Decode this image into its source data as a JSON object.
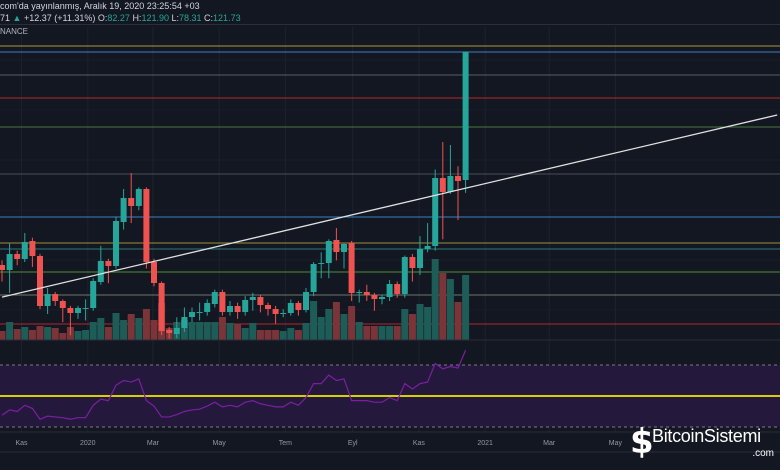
{
  "header": {
    "published": "com'da yayınlanmış, Aralık 19, 2020 23:25:54 +03",
    "price_prefix": "71",
    "change_arrow": "▲",
    "change": "+12.37 (+11.31%)",
    "o_label": "O:",
    "o": "82.27",
    "h_label": "H:",
    "h": "121.90",
    "l_label": "L:",
    "l": "78.31",
    "c_label": "C:",
    "c": "121.73",
    "exchange": "NANCE"
  },
  "logo": {
    "name": "BitcoinSistemi",
    "suffix": ".com"
  },
  "colors": {
    "background": "#131722",
    "up": "#26a69a",
    "down": "#ef5350",
    "volume_up": "#1e5c58",
    "volume_down": "#7b3538",
    "rsi_line": "#7b1fa2",
    "rsi_band": "#25183d",
    "rsi_mid": "#d6d000"
  },
  "chart_data": {
    "type": "candlestick",
    "interval": "weekly",
    "candle_fields": [
      "date",
      "open",
      "high",
      "low",
      "close"
    ],
    "candles": [
      [
        "2019-10-14",
        56.09,
        57.5,
        51.0,
        54.55
      ],
      [
        "2019-10-21",
        54.55,
        62.87,
        47.5,
        59.48
      ],
      [
        "2019-10-28",
        59.48,
        60.5,
        56.0,
        57.94
      ],
      [
        "2019-11-04",
        57.94,
        65.95,
        57.0,
        63.17
      ],
      [
        "2019-11-11",
        63.48,
        64.5,
        55.5,
        58.86
      ],
      [
        "2019-11-18",
        58.86,
        59.5,
        42.5,
        43.46
      ],
      [
        "2019-11-25",
        43.46,
        49.0,
        41.0,
        47.16
      ],
      [
        "2019-12-02",
        47.16,
        47.8,
        43.5,
        45.0
      ],
      [
        "2019-12-09",
        45.0,
        45.5,
        38.5,
        42.85
      ],
      [
        "2019-12-16",
        42.85,
        43.5,
        34.5,
        41.31
      ],
      [
        "2019-12-23",
        41.31,
        43.5,
        39.5,
        42.85
      ],
      [
        "2019-12-30",
        42.55,
        45.5,
        39.0,
        42.85
      ],
      [
        "2020-01-06",
        42.85,
        52.0,
        42.0,
        51.16
      ],
      [
        "2020-01-13",
        50.85,
        62.0,
        50.0,
        57.32
      ],
      [
        "2020-01-20",
        57.32,
        58.0,
        50.5,
        55.78
      ],
      [
        "2020-01-27",
        55.78,
        71.0,
        55.0,
        69.64
      ],
      [
        "2020-02-03",
        69.33,
        79.5,
        67.0,
        76.73
      ],
      [
        "2020-02-10",
        76.73,
        84.43,
        69.0,
        74.26
      ],
      [
        "2020-02-17",
        74.26,
        80.0,
        73.0,
        79.5
      ],
      [
        "2020-02-24",
        79.5,
        80.0,
        55.0,
        57.01
      ],
      [
        "2020-03-02",
        57.01,
        58.0,
        49.5,
        50.55
      ],
      [
        "2020-03-09",
        50.55,
        51.0,
        34.5,
        35.76
      ],
      [
        "2020-03-16",
        36.07,
        37.0,
        33.5,
        35.15
      ],
      [
        "2020-03-23",
        34.84,
        40.0,
        33.5,
        36.69
      ],
      [
        "2020-03-30",
        36.69,
        43.0,
        35.5,
        40.07
      ],
      [
        "2020-04-06",
        40.07,
        43.0,
        38.5,
        41.61
      ],
      [
        "2020-04-13",
        41.4,
        44.5,
        39.0,
        41.61
      ],
      [
        "2020-04-20",
        41.61,
        45.5,
        40.5,
        44.39
      ],
      [
        "2020-04-27",
        44.08,
        48.5,
        43.0,
        47.77
      ],
      [
        "2020-05-04",
        47.77,
        48.5,
        40.5,
        41.61
      ],
      [
        "2020-05-11",
        41.61,
        45.0,
        40.5,
        43.46
      ],
      [
        "2020-05-18",
        43.46,
        44.5,
        39.5,
        41.61
      ],
      [
        "2020-05-25",
        41.61,
        46.5,
        40.5,
        45.31
      ],
      [
        "2020-06-01",
        45.31,
        47.5,
        42.0,
        46.23
      ],
      [
        "2020-06-08",
        46.23,
        47.0,
        41.5,
        43.77
      ],
      [
        "2020-06-15",
        43.77,
        44.5,
        40.5,
        42.54
      ],
      [
        "2020-06-22",
        42.54,
        43.5,
        38.0,
        41.0
      ],
      [
        "2020-06-29",
        41.2,
        42.5,
        40.0,
        41.31
      ],
      [
        "2020-07-06",
        41.31,
        45.5,
        40.5,
        44.39
      ],
      [
        "2020-07-13",
        44.39,
        45.0,
        40.5,
        42.23
      ],
      [
        "2020-07-20",
        42.23,
        49.0,
        41.5,
        47.77
      ],
      [
        "2020-07-27",
        47.77,
        57.0,
        46.5,
        56.4
      ],
      [
        "2020-08-03",
        56.5,
        60.0,
        52.0,
        56.71
      ],
      [
        "2020-08-10",
        56.71,
        64.0,
        52.0,
        63.48
      ],
      [
        "2020-08-17",
        63.8,
        67.5,
        57.5,
        60.09
      ],
      [
        "2020-08-24",
        60.09,
        63.0,
        55.0,
        62.56
      ],
      [
        "2020-08-31",
        62.87,
        63.5,
        45.0,
        47.47
      ],
      [
        "2020-09-07",
        47.6,
        48.5,
        44.5,
        47.77
      ],
      [
        "2020-09-14",
        47.77,
        50.0,
        45.0,
        46.85
      ],
      [
        "2020-09-21",
        46.85,
        47.5,
        42.0,
        45.62
      ],
      [
        "2020-09-28",
        45.62,
        47.0,
        44.0,
        46.23
      ],
      [
        "2020-10-05",
        46.23,
        51.5,
        45.0,
        50.24
      ],
      [
        "2020-10-12",
        50.24,
        51.0,
        46.0,
        47.16
      ],
      [
        "2020-10-19",
        47.16,
        59.0,
        46.0,
        58.55
      ],
      [
        "2020-10-26",
        58.55,
        59.5,
        51.0,
        55.17
      ],
      [
        "2020-11-02",
        55.17,
        65.0,
        53.0,
        61.02
      ],
      [
        "2020-11-09",
        61.02,
        69.0,
        60.0,
        61.94
      ],
      [
        "2020-11-16",
        61.94,
        85.5,
        60.5,
        82.89
      ],
      [
        "2020-11-23",
        82.89,
        93.97,
        64.0,
        78.57
      ],
      [
        "2020-11-30",
        78.57,
        93.05,
        78.0,
        83.5
      ],
      [
        "2020-12-07",
        83.5,
        86.5,
        69.95,
        81.96
      ],
      [
        "2020-12-14",
        82.27,
        121.9,
        78.31,
        121.73
      ]
    ],
    "volume": [
      9,
      18,
      11,
      13,
      10,
      14,
      13,
      12,
      7,
      13,
      9,
      10,
      18,
      22,
      13,
      27,
      20,
      26,
      22,
      31,
      20,
      37,
      12,
      18,
      20,
      18,
      18,
      18,
      18,
      23,
      17,
      16,
      12,
      17,
      10,
      10,
      10,
      9,
      12,
      10,
      17,
      39,
      23,
      31,
      38,
      26,
      34,
      18,
      14,
      14,
      14,
      14,
      14,
      31,
      26,
      36,
      33,
      81,
      67,
      61,
      38,
      65
    ],
    "rsi": [
      37.7,
      41,
      40,
      44,
      42,
      35,
      37,
      36.5,
      36,
      35,
      36,
      36,
      44,
      48,
      47,
      57,
      60,
      59,
      61,
      47,
      43.5,
      36.5,
      36.5,
      38,
      40,
      41,
      41.5,
      43.5,
      46,
      43,
      44,
      43,
      46,
      47,
      45,
      44,
      43,
      43,
      46,
      44,
      49,
      58,
      58,
      63.5,
      60,
      61,
      47,
      47,
      47,
      46,
      46,
      49,
      47,
      58,
      54.5,
      58,
      59,
      71,
      67.5,
      69,
      68,
      79.5
    ],
    "rsi_levels": {
      "upper": 70,
      "middle": 50,
      "lower": 30
    },
    "horizontal_levels": [
      {
        "price": 123.54,
        "color": "#a99a35"
      },
      {
        "price": 121.69,
        "color": "#3b82c4"
      },
      {
        "price": 114.61,
        "color": "#5a5e66"
      },
      {
        "price": 107.53,
        "color": "#b22b2b"
      },
      {
        "price": 98.59,
        "color": "#4a7a3e"
      },
      {
        "price": 84.12,
        "color": "#4a4d55"
      },
      {
        "price": 70.87,
        "color": "#3b82c4"
      },
      {
        "price": 62.87,
        "color": "#9a8f3a"
      },
      {
        "price": 61.02,
        "color": "#2b7a78"
      },
      {
        "price": 53.93,
        "color": "#4e8f3a"
      },
      {
        "price": 46.85,
        "color": "#6b7a6a"
      },
      {
        "price": 37.92,
        "color": "#b02a2a"
      }
    ],
    "trendline": {
      "start": [
        "2019-10-14",
        46.2
      ],
      "end": [
        "2021-09-27",
        102.3
      ],
      "color": "#e0e0e0"
    },
    "x_ticks": [
      {
        "label": "Kas",
        "date": "2019-11-01"
      },
      {
        "label": "2020",
        "date": "2020-01-01"
      },
      {
        "label": "Mar",
        "date": "2020-03-01"
      },
      {
        "label": "May",
        "date": "2020-05-01"
      },
      {
        "label": "Tem",
        "date": "2020-07-01"
      },
      {
        "label": "Eyl",
        "date": "2020-09-01"
      },
      {
        "label": "Kas",
        "date": "2020-11-01"
      },
      {
        "label": "2021",
        "date": "2021-01-01"
      },
      {
        "label": "Mar",
        "date": "2021-03-01"
      },
      {
        "label": "May",
        "date": "2021-05-01"
      }
    ],
    "grid": true
  }
}
